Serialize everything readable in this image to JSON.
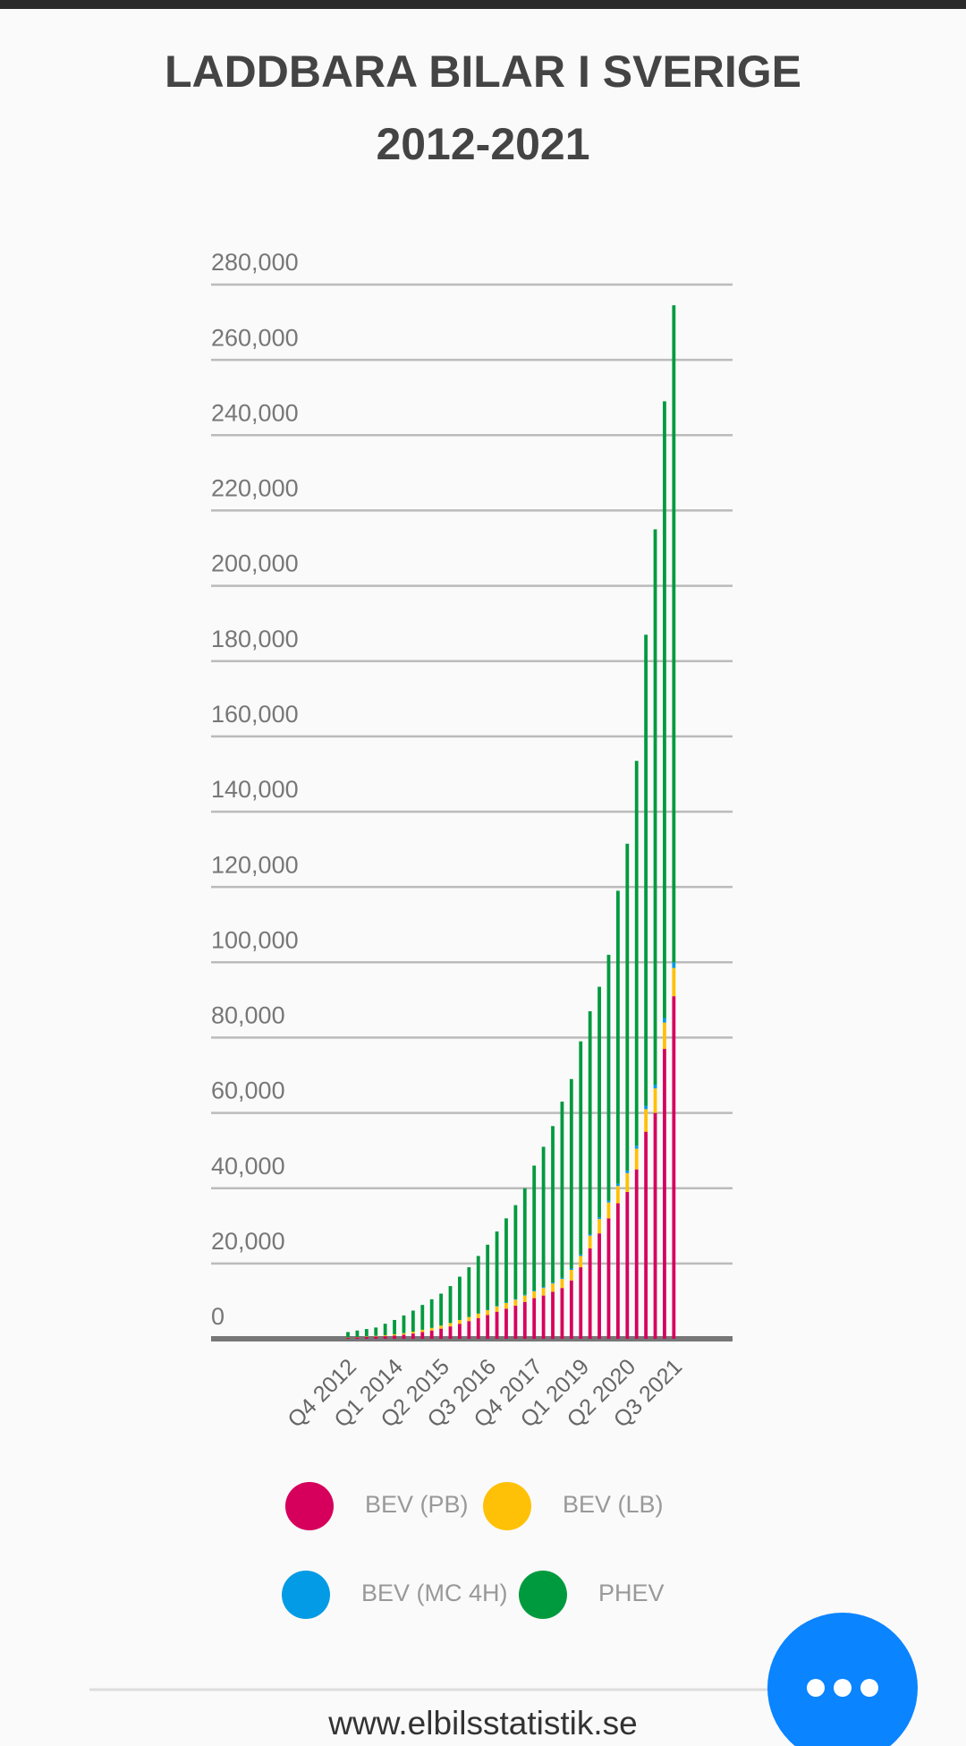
{
  "chart_data": {
    "type": "bar",
    "stacked": true,
    "title": [
      "LADDBARA BILAR I SVERIGE",
      "2012-2021"
    ],
    "categories": [
      "Q4 2012",
      null,
      null,
      null,
      null,
      "Q1 2014",
      null,
      null,
      null,
      null,
      "Q2 2015",
      null,
      null,
      null,
      null,
      "Q3 2016",
      null,
      null,
      null,
      null,
      "Q4 2017",
      null,
      null,
      null,
      null,
      "Q1 2019",
      null,
      null,
      null,
      null,
      "Q2 2020",
      null,
      null,
      null,
      null,
      "Q3 2021"
    ],
    "series": [
      {
        "name": "BEV (PB)",
        "color": "#d6005c",
        "values": [
          300,
          400,
          500,
          600,
          700,
          900,
          1100,
          1400,
          1800,
          2200,
          2700,
          3300,
          4000,
          4700,
          5500,
          6300,
          7200,
          8000,
          8800,
          9800,
          10800,
          11500,
          12500,
          13500,
          15500,
          19000,
          24000,
          28000,
          32000,
          36000,
          39000,
          45000,
          55000,
          60000,
          77000,
          91000
        ]
      },
      {
        "name": "BEV (LB)",
        "color": "#ffc107",
        "values": [
          100,
          100,
          150,
          200,
          250,
          300,
          400,
          500,
          600,
          700,
          800,
          900,
          1000,
          1100,
          1200,
          1300,
          1400,
          1500,
          1600,
          1700,
          1800,
          2000,
          2200,
          2400,
          2800,
          3000,
          3400,
          3800,
          4200,
          4600,
          5000,
          5500,
          6000,
          6500,
          7000,
          7500
        ]
      },
      {
        "name": "BEV (MC 4H)",
        "color": "#039be5",
        "values": [
          0,
          0,
          0,
          0,
          0,
          0,
          0,
          0,
          0,
          0,
          0,
          0,
          0,
          0,
          0,
          100,
          100,
          150,
          150,
          200,
          200,
          250,
          300,
          300,
          350,
          400,
          400,
          500,
          500,
          600,
          700,
          800,
          900,
          1000,
          1200,
          1500
        ]
      },
      {
        "name": "PHEV",
        "color": "#009a3e",
        "values": [
          1400,
          1700,
          1950,
          2200,
          3050,
          3800,
          4700,
          5600,
          6600,
          7600,
          8500,
          9800,
          11500,
          13200,
          15300,
          17300,
          19800,
          22350,
          24950,
          28300,
          33200,
          37250,
          41500,
          46800,
          50350,
          56600,
          59200,
          61200,
          65300,
          77800,
          86800,
          102200,
          125100,
          147500,
          163800,
          174500
        ]
      }
    ],
    "ylim": [
      0,
      280000
    ],
    "yticks": [
      0,
      {
        "value": 20000,
        "label": "20,000"
      },
      {
        "value": 40000,
        "label": "40,000"
      },
      {
        "value": 60000,
        "label": "60,000"
      },
      {
        "value": 80000,
        "label": "80,000"
      },
      {
        "value": 100000,
        "label": "100,000"
      },
      {
        "value": 120000,
        "label": "120,000"
      },
      {
        "value": 140000,
        "label": "140,000"
      },
      {
        "value": 160000,
        "label": "160,000"
      },
      {
        "value": 180000,
        "label": "180,000"
      },
      {
        "value": 200000,
        "label": "200,000"
      },
      {
        "value": 220000,
        "label": "220,000"
      },
      {
        "value": 240000,
        "label": "240,000"
      },
      {
        "value": 260000,
        "label": "260,000"
      },
      {
        "value": 280000,
        "label": "280,000"
      }
    ],
    "grid": true
  },
  "footer": "www.elbilsstatistik.se"
}
